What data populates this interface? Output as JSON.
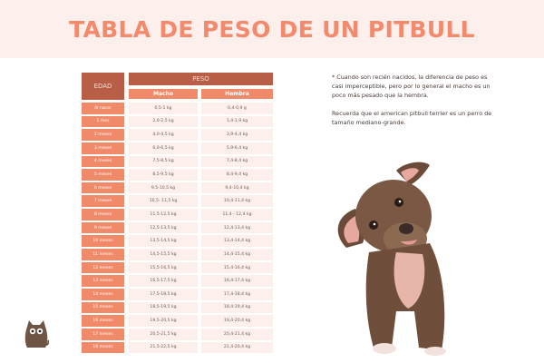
{
  "header": {
    "title": "TABLA DE PESO DE UN PITBULL"
  },
  "table": {
    "col_age": "EDAD",
    "col_weight": "PESO",
    "col_male": "Macho",
    "col_female": "Hembra",
    "rows": [
      {
        "age": "Al nacer",
        "male": "0,5-1 kg",
        "female": "0,4-0,9 g"
      },
      {
        "age": "1 mes",
        "male": "2,0-2,5 kg",
        "female": "1,4-1,9 kg"
      },
      {
        "age": "2 meses",
        "male": "4,0-4,5 kg",
        "female": "3,9-4,4 kg"
      },
      {
        "age": "3 meses",
        "male": "6,0-6,5 kg",
        "female": "5,9-6,4 kg"
      },
      {
        "age": "4 meses",
        "male": "7,5-8,5 kg",
        "female": "7,4-8,4 kg"
      },
      {
        "age": "5 meses",
        "male": "8,5-9,5 kg",
        "female": "8,4-9,4 kg"
      },
      {
        "age": "6 meses",
        "male": "9,5-10,5 kg",
        "female": "9,4-10,4 kg"
      },
      {
        "age": "7 meses",
        "male": "10,5- 11,5 kg",
        "female": "10,4-11,4 kg"
      },
      {
        "age": "8 meses",
        "male": "11,5-12,5 kg",
        "female": "11,4 - 12,4 kg"
      },
      {
        "age": "9 meses",
        "male": "12,5-13,5 kg",
        "female": "12,4-13,4 kg"
      },
      {
        "age": "10 meses",
        "male": "13,5-14,5 kg",
        "female": "13,4-14,4 kg"
      },
      {
        "age": "11 meses",
        "male": "14,5-15,5 kg",
        "female": "14,4-15,4 kg"
      },
      {
        "age": "12 meses",
        "male": "15,5-16,5 kg",
        "female": "15,4-16,4 kg"
      },
      {
        "age": "13 meses",
        "male": "16,5-17,5 kg",
        "female": "16,4-17,4 kg"
      },
      {
        "age": "14 meses",
        "male": "17,5-18,5 kg",
        "female": "17,4-18,4 kg"
      },
      {
        "age": "15 meses",
        "male": "18,5-19,5 kg",
        "female": "18,4-19,4 kg"
      },
      {
        "age": "16 meses",
        "male": "19,5-20,5 kg",
        "female": "19,4-20,4 kg"
      },
      {
        "age": "17 meses",
        "male": "20,5-21,5 kg",
        "female": "20,4-21,4 kg"
      },
      {
        "age": "18 meses",
        "male": "21,5-22,5 kg",
        "female": "21,4-20,4 kg"
      }
    ]
  },
  "notes": {
    "paragraph_1": "* Cuando son recién nacidos, la diferencia de peso es casi imperceptible, pero por lo general el macho es un poco más pesado que la hembra.",
    "paragraph_2": "Recuerda que el american pitbull terrier es un perro de tamaño mediano-grande."
  },
  "images": {
    "puppy": "pitbull-puppy-watercolor-illustration",
    "logo": "cat-logo-icon"
  },
  "colors": {
    "title": "#f4896b",
    "header_bg": "#fdf0ec",
    "dark_header": "#b85e46",
    "accent": "#f08a68",
    "cell_bg": "#fdf0ec"
  }
}
